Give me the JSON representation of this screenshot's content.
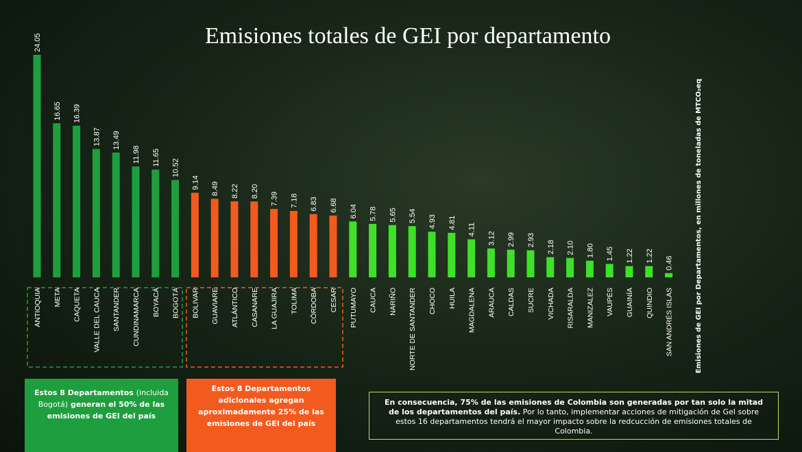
{
  "chart_data": {
    "type": "bar",
    "title": "Emisiones totales de GEI por departamento",
    "axis_label": "Emisiones de GEI por Departamentos, en millones de toneladas de MTCO₂eq",
    "categories": [
      "ANTIOQUIA",
      "META",
      "CAQUETA",
      "VALLE DEL CAUCA",
      "SANTANDER",
      "CUNDINAMARCA",
      "BOYACÁ",
      "BOGOTÁ",
      "BOLIVAR",
      "GUAVIARE",
      "ATLÁNTICO",
      "CASANARE",
      "LA GUAJIRA",
      "TOLIMA",
      "CÓRDOBA",
      "CESAR",
      "PUTUMAYO",
      "CAUCA",
      "NARIÑO",
      "NORTE DE SANTANDER",
      "CHOCO",
      "HUILA",
      "MAGDALENA",
      "ARAUCA",
      "CALDAS",
      "SUCRE",
      "VICHADA",
      "RISARALDA",
      "MANIZALEZ",
      "VAUPÉS",
      "GUAINÍA",
      "QUINDIO",
      "SAN ANDRÉS ISLAS"
    ],
    "values": [
      24.05,
      16.65,
      16.39,
      13.87,
      13.49,
      11.98,
      11.65,
      10.52,
      9.14,
      8.49,
      8.22,
      8.2,
      7.39,
      7.18,
      6.83,
      6.68,
      6.04,
      5.78,
      5.65,
      5.54,
      4.93,
      4.81,
      4.11,
      3.12,
      2.99,
      2.93,
      2.18,
      2.1,
      1.8,
      1.45,
      1.22,
      1.22,
      0.46
    ],
    "value_labels": [
      "24.05",
      "16.65",
      "16.39",
      "13.87",
      "13.49",
      "11.98",
      "11.65",
      "10.52",
      "9.14",
      "8.49",
      "8.22",
      "8.20",
      "7.39",
      "7.18",
      "6.83",
      "6.68",
      "6.04",
      "5.78",
      "5.65",
      "5.54",
      "4.93",
      "4.81",
      "4.11",
      "3.12",
      "2.99",
      "2.93",
      "2.18",
      "2.10",
      "1.80",
      "1.45",
      "1.22",
      "1.22",
      "0.46"
    ],
    "colors": [
      "#1f9e3f",
      "#1f9e3f",
      "#1f9e3f",
      "#1f9e3f",
      "#1f9e3f",
      "#1f9e3f",
      "#1f9e3f",
      "#1f9e3f",
      "#f35a1e",
      "#f35a1e",
      "#f35a1e",
      "#f35a1e",
      "#f35a1e",
      "#f35a1e",
      "#f35a1e",
      "#f35a1e",
      "#3fe02a",
      "#3fe02a",
      "#3fe02a",
      "#3fe02a",
      "#3fe02a",
      "#3fe02a",
      "#3fe02a",
      "#3fe02a",
      "#3fe02a",
      "#3fe02a",
      "#3fe02a",
      "#3fe02a",
      "#3fe02a",
      "#3fe02a",
      "#3fe02a",
      "#3fe02a",
      "#3fe02a"
    ],
    "notes": [
      {
        "bold_1": "Estos 8 Departamentos",
        "normal": "(incluida Bogotá)",
        "bold_2": "generan el 50% de las emisiones de GEI del país"
      },
      {
        "text": "Estos 8 Departamentos adicionales agregan aproximadamente 25% de las emisiones de GEI del país"
      },
      {
        "bold": "En consecuencia, 75% de las emisiones de Colombia son generadas por tan solo la mitad de los departamentos del país.",
        "normal": "Por lo tanto,  implementar acciones de mitigación  de GeI sobre estos 16 departamentos tendrá el mayor impacto sobre la redcucción de emisiones totales  de Colombia."
      }
    ]
  }
}
